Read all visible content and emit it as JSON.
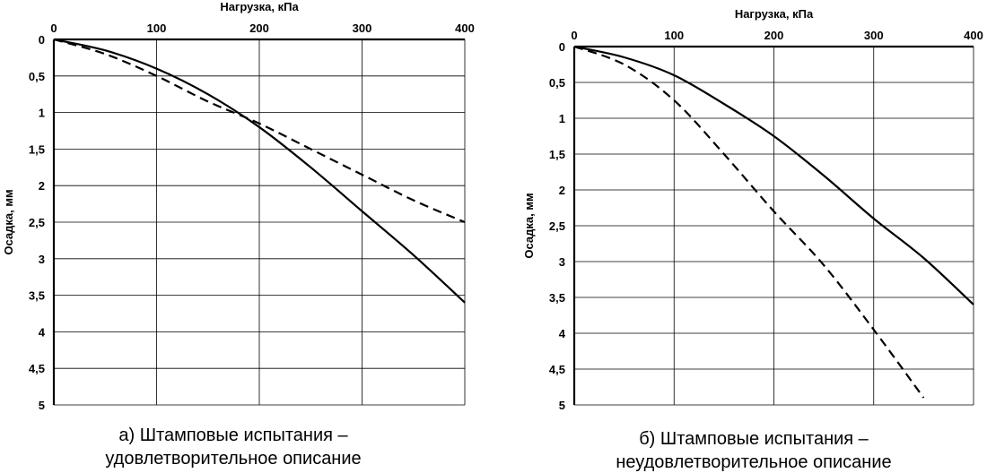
{
  "chart_data": [
    {
      "type": "line",
      "xlabel": "Нагрузка, кПа",
      "ylabel": "Осадка, мм",
      "caption_line1": "а) Штамповые испытания –",
      "caption_line2": "удовлетворительное описание",
      "xlim": [
        0,
        400
      ],
      "ylim": [
        0,
        5
      ],
      "y_inverted": true,
      "x_axis_position": "top",
      "grid": true,
      "x_ticks": [
        "0",
        "100",
        "200",
        "300",
        "400"
      ],
      "y_ticks": [
        "0",
        "0,5",
        "1",
        "1,5",
        "2",
        "2,5",
        "3",
        "3,5",
        "4",
        "4,5",
        "5"
      ],
      "series": [
        {
          "style": "solid",
          "x": [
            0,
            50,
            100,
            150,
            200,
            250,
            300,
            350,
            400
          ],
          "y": [
            0,
            0.15,
            0.4,
            0.75,
            1.2,
            1.75,
            2.35,
            2.95,
            3.6
          ]
        },
        {
          "style": "dashed",
          "x": [
            0,
            50,
            100,
            150,
            200,
            250,
            300,
            350,
            400
          ],
          "y": [
            0,
            0.2,
            0.5,
            0.85,
            1.15,
            1.5,
            1.85,
            2.2,
            2.5
          ]
        }
      ]
    },
    {
      "type": "line",
      "xlabel": "Нагрузка, кПа",
      "ylabel": "Осадка, мм",
      "caption_line1": "б) Штамповые испытания –",
      "caption_line2": "неудовлетворительное описание",
      "xlim": [
        0,
        400
      ],
      "ylim": [
        0,
        5
      ],
      "y_inverted": true,
      "x_axis_position": "top",
      "grid": true,
      "x_ticks": [
        "0",
        "100",
        "200",
        "300",
        "400"
      ],
      "y_ticks": [
        "0",
        "0,5",
        "1",
        "1,5",
        "2",
        "2,5",
        "3",
        "3,5",
        "4",
        "4,5",
        "5"
      ],
      "series": [
        {
          "style": "solid",
          "x": [
            0,
            50,
            100,
            150,
            200,
            250,
            300,
            350,
            400
          ],
          "y": [
            0,
            0.15,
            0.4,
            0.8,
            1.25,
            1.8,
            2.4,
            2.95,
            3.6
          ]
        },
        {
          "style": "dashed",
          "x": [
            0,
            50,
            100,
            150,
            200,
            250,
            300,
            350
          ],
          "y": [
            0,
            0.25,
            0.75,
            1.5,
            2.3,
            3.05,
            3.95,
            4.9
          ]
        }
      ]
    }
  ]
}
